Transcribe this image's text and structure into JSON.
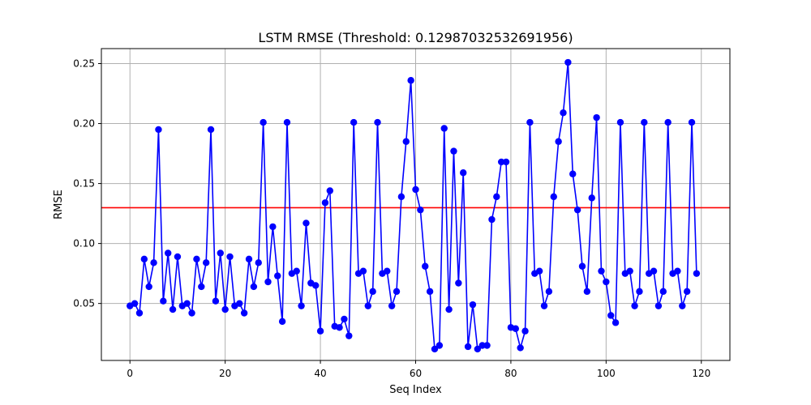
{
  "chart_data": {
    "type": "line",
    "title": "LSTM RMSE (Threshold: 0.12987032532691956)",
    "xlabel": "Seq Index",
    "ylabel": "RMSE",
    "xlim": [
      -6,
      126
    ],
    "ylim": [
      0.0025,
      0.2625
    ],
    "x_ticks": [
      0,
      20,
      40,
      60,
      80,
      100,
      120
    ],
    "y_ticks": [
      0.05,
      0.1,
      0.15,
      0.2,
      0.25
    ],
    "y_tick_labels": [
      "0.05",
      "0.10",
      "0.15",
      "0.20",
      "0.25"
    ],
    "grid": true,
    "threshold": 0.12987032532691956,
    "colors": {
      "series": "#0000ff",
      "threshold": "#ff0000",
      "grid": "#b0b0b0"
    },
    "series": [
      {
        "x": [
          0,
          1,
          2,
          3,
          4,
          5,
          6,
          7,
          8,
          9,
          10,
          11,
          12,
          13,
          14,
          15,
          16,
          17,
          18,
          19,
          20,
          21,
          22,
          23,
          24,
          25,
          26,
          27,
          28,
          29,
          30,
          31,
          32,
          33,
          34,
          35,
          36,
          37,
          38,
          39,
          40,
          41,
          42,
          43,
          44,
          45,
          46,
          47,
          48,
          49,
          50,
          51,
          52,
          53,
          54,
          55,
          56,
          57,
          58,
          59,
          60,
          61,
          62,
          63,
          64,
          65,
          66,
          67,
          68,
          69,
          70,
          71,
          72,
          73,
          74,
          75,
          76,
          77,
          78,
          79,
          80,
          81,
          82,
          83,
          84,
          85,
          86,
          87,
          88,
          89,
          90,
          91,
          92,
          93,
          94,
          95,
          96,
          97,
          98,
          99,
          100,
          101,
          102,
          103,
          104,
          105,
          106,
          107,
          108,
          109,
          110,
          111,
          112,
          113,
          114,
          115,
          116,
          117,
          118,
          119
        ],
        "values": [
          0.048,
          0.05,
          0.042,
          0.087,
          0.064,
          0.084,
          0.195,
          0.052,
          0.092,
          0.045,
          0.089,
          0.048,
          0.05,
          0.042,
          0.087,
          0.064,
          0.084,
          0.195,
          0.052,
          0.092,
          0.045,
          0.089,
          0.048,
          0.05,
          0.042,
          0.087,
          0.064,
          0.084,
          0.201,
          0.068,
          0.114,
          0.073,
          0.035,
          0.201,
          0.075,
          0.077,
          0.048,
          0.117,
          0.067,
          0.065,
          0.027,
          0.134,
          0.144,
          0.031,
          0.03,
          0.037,
          0.023,
          0.201,
          0.075,
          0.077,
          0.048,
          0.06,
          0.201,
          0.075,
          0.077,
          0.048,
          0.06,
          0.139,
          0.185,
          0.236,
          0.145,
          0.128,
          0.081,
          0.06,
          0.012,
          0.015,
          0.196,
          0.045,
          0.177,
          0.067,
          0.159,
          0.014,
          0.049,
          0.012,
          0.015,
          0.015,
          0.12,
          0.139,
          0.168,
          0.168,
          0.03,
          0.029,
          0.013,
          0.027,
          0.201,
          0.075,
          0.077,
          0.048,
          0.06,
          0.139,
          0.185,
          0.209,
          0.251,
          0.158,
          0.128,
          0.081,
          0.06,
          0.138,
          0.205,
          0.077,
          0.068,
          0.04,
          0.034,
          0.201,
          0.075,
          0.077,
          0.048,
          0.06,
          0.201,
          0.075,
          0.077,
          0.048,
          0.06,
          0.201,
          0.075,
          0.077,
          0.048,
          0.06,
          0.201,
          0.075
        ]
      }
    ]
  }
}
